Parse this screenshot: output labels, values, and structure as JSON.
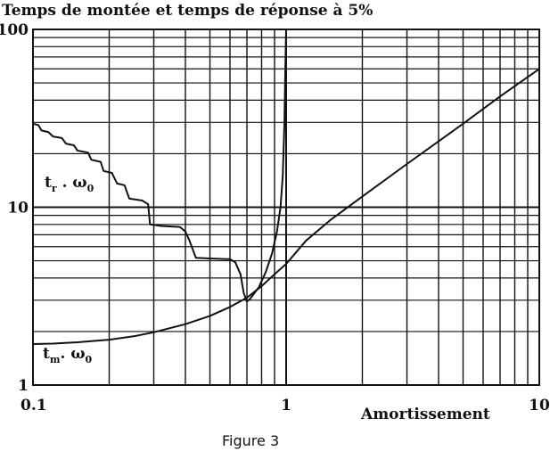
{
  "chart_data": {
    "type": "line",
    "title": "Temps de montée et temps de réponse à 5%",
    "xlabel": "Amortissement",
    "ylabel": "",
    "caption": "Figure 3",
    "xscale": "log",
    "yscale": "log",
    "xlim": [
      0.1,
      10
    ],
    "ylim": [
      1,
      100
    ],
    "grid": true,
    "x_ticks": [
      {
        "value": 0.1,
        "label": "0.1"
      },
      {
        "value": 1,
        "label": "1"
      },
      {
        "value": 10,
        "label": "10"
      }
    ],
    "y_ticks": [
      {
        "value": 1,
        "label": "1"
      },
      {
        "value": 10,
        "label": "10"
      },
      {
        "value": 100,
        "label": "100"
      }
    ],
    "series": [
      {
        "name": "tr . ω0",
        "label_main": "t",
        "label_sub": "r",
        "label_mid": " . ω",
        "label_sub2": "0",
        "color": "#111111",
        "points": [
          [
            0.1,
            29.5
          ],
          [
            0.105,
            29.0
          ],
          [
            0.108,
            27.0
          ],
          [
            0.115,
            26.5
          ],
          [
            0.12,
            25.0
          ],
          [
            0.13,
            24.5
          ],
          [
            0.135,
            22.8
          ],
          [
            0.145,
            22.3
          ],
          [
            0.15,
            20.8
          ],
          [
            0.165,
            20.3
          ],
          [
            0.17,
            18.5
          ],
          [
            0.185,
            18.0
          ],
          [
            0.19,
            16.0
          ],
          [
            0.205,
            15.6
          ],
          [
            0.215,
            13.6
          ],
          [
            0.23,
            13.3
          ],
          [
            0.24,
            11.2
          ],
          [
            0.27,
            10.9
          ],
          [
            0.285,
            10.4
          ],
          [
            0.29,
            8.0
          ],
          [
            0.32,
            7.85
          ],
          [
            0.38,
            7.75
          ],
          [
            0.4,
            7.3
          ],
          [
            0.415,
            6.5
          ],
          [
            0.44,
            5.2
          ],
          [
            0.5,
            5.15
          ],
          [
            0.6,
            5.1
          ],
          [
            0.63,
            4.9
          ],
          [
            0.66,
            4.2
          ],
          [
            0.68,
            3.3
          ],
          [
            0.7,
            2.95
          ],
          [
            0.72,
            3.05
          ],
          [
            0.78,
            3.55
          ],
          [
            0.83,
            4.3
          ],
          [
            0.88,
            5.5
          ],
          [
            0.92,
            7.3
          ],
          [
            0.95,
            10.0
          ],
          [
            0.97,
            15.0
          ],
          [
            0.985,
            30.0
          ],
          [
            0.993,
            60.0
          ],
          [
            1.0,
            100
          ]
        ]
      },
      {
        "name": "tm . ω0",
        "label_main": "t",
        "label_sub": "m",
        "label_mid": ". ω",
        "label_sub2": "0",
        "color": "#111111",
        "points": [
          [
            0.1,
            1.7
          ],
          [
            0.12,
            1.71
          ],
          [
            0.15,
            1.74
          ],
          [
            0.2,
            1.8
          ],
          [
            0.25,
            1.88
          ],
          [
            0.3,
            1.98
          ],
          [
            0.4,
            2.2
          ],
          [
            0.5,
            2.45
          ],
          [
            0.6,
            2.75
          ],
          [
            0.7,
            3.1
          ],
          [
            0.8,
            3.6
          ],
          [
            0.9,
            4.2
          ],
          [
            1.0,
            4.8
          ],
          [
            1.2,
            6.5
          ],
          [
            1.5,
            8.5
          ],
          [
            2.0,
            11.5
          ],
          [
            3.0,
            17.5
          ],
          [
            5.0,
            29.5
          ],
          [
            7.0,
            42.0
          ],
          [
            10.0,
            60.0
          ]
        ]
      }
    ]
  }
}
